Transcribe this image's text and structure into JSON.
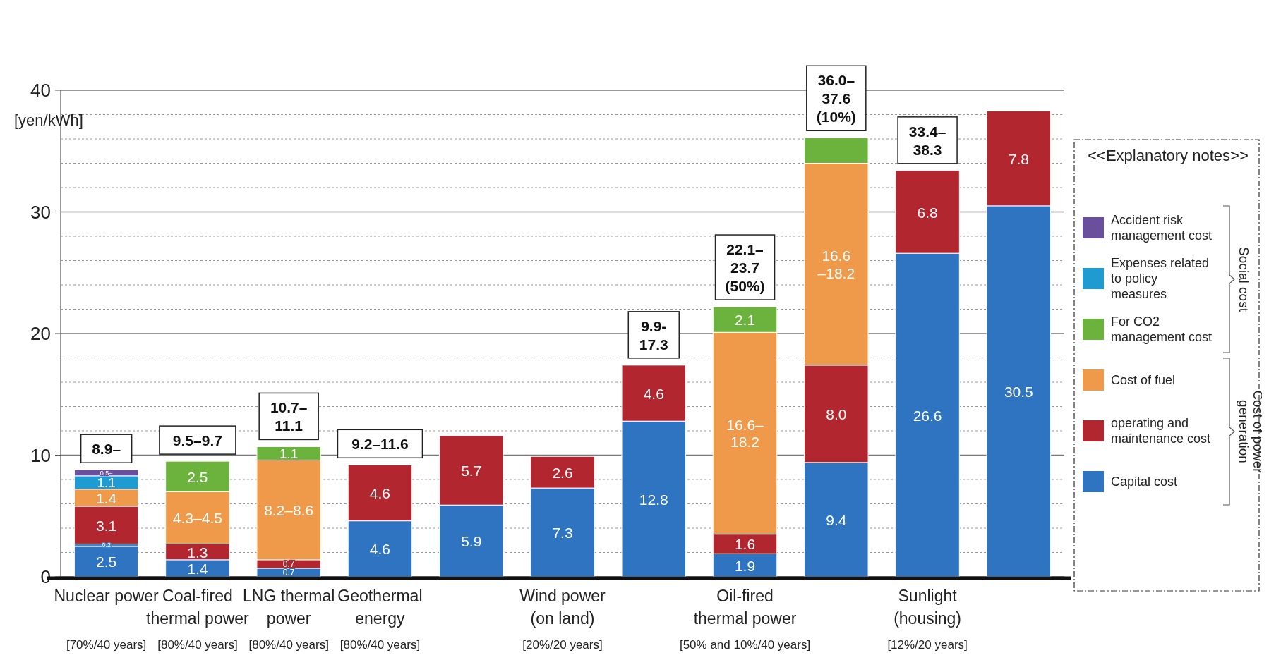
{
  "chart_data": {
    "type": "bar",
    "stacked": true,
    "categories": [
      "Nuclear power\n[70%/40 years]",
      "Coal-fired\nthermal power\n[80%/40 years]",
      "LNG thermal\npower\n[80%/40 years]",
      "Geothermal\nenergy\n[80%/40 years]",
      null,
      "Wind power\n(on land)\n[20%/20 years]",
      null,
      "Oil-fired\nthermal power\n[50% and 10%/40 years]",
      null,
      "Sunlight\n(housing)\n[12%/20 years]",
      null
    ],
    "series": [
      {
        "name": "Capital cost",
        "color": "#2e74c0",
        "values": [
          2.5,
          1.4,
          0.7,
          4.6,
          5.9,
          7.3,
          12.8,
          1.9,
          9.4,
          26.6,
          30.5
        ],
        "value_labels": [
          "2.5",
          "1.4",
          "0.7",
          "4.6",
          "5.9",
          "7.3",
          "12.8",
          "1.9",
          "9.4",
          "26.6",
          "30.5"
        ]
      },
      {
        "color": "#3d84cc",
        "values": [
          0.2,
          null,
          null,
          null,
          null,
          null,
          null,
          null,
          null,
          null,
          null
        ],
        "value_labels": [
          "0.2",
          null,
          null,
          null,
          null,
          null,
          null,
          null,
          null,
          null,
          null
        ]
      },
      {
        "name": "operating and maintenance cost",
        "color": "#b2262f",
        "values": [
          3.1,
          1.3,
          0.7,
          4.6,
          5.7,
          2.6,
          4.6,
          1.6,
          8.0,
          6.8,
          7.8
        ],
        "value_labels": [
          "3.1",
          "1.3",
          "0.7",
          "4.6",
          "5.7",
          "2.6",
          "4.6",
          "1.6",
          "8.0",
          "6.8",
          "7.8"
        ]
      },
      {
        "name": "Cost of fuel",
        "color": "#ee9a4a",
        "values": [
          1.4,
          4.3,
          8.2,
          null,
          null,
          null,
          null,
          16.6,
          16.6,
          null,
          null
        ],
        "value_labels": [
          "1.4",
          "4.3–4.5",
          "8.2–8.6",
          null,
          null,
          null,
          null,
          "16.6–\n18.2",
          "16.6\n–18.2",
          null,
          null
        ]
      },
      {
        "name": "For CO2 management cost",
        "color": "#6cb33e",
        "values": [
          null,
          2.5,
          1.1,
          null,
          null,
          null,
          null,
          2.1,
          2.1,
          null,
          null
        ],
        "value_labels": [
          null,
          "2.5",
          "1.1",
          null,
          null,
          null,
          null,
          "2.1",
          null,
          null,
          null
        ]
      },
      {
        "name": "Expenses related to policy measures",
        "color": "#1f9bd1",
        "values": [
          1.1,
          null,
          null,
          null,
          null,
          null,
          null,
          null,
          null,
          null,
          null
        ],
        "value_labels": [
          "1.1",
          null,
          null,
          null,
          null,
          null,
          null,
          null,
          null,
          null,
          null
        ]
      },
      {
        "name": "Accident risk management cost",
        "color": "#6a4f9c",
        "values": [
          0.5,
          null,
          null,
          null,
          null,
          null,
          null,
          null,
          null,
          null,
          null
        ],
        "value_labels": [
          "0.5–",
          null,
          null,
          null,
          null,
          null,
          null,
          null,
          null,
          null,
          null
        ]
      }
    ],
    "ylabel": "[yen/kWh]",
    "ylim": [
      0,
      40
    ],
    "yticks": [
      0,
      {
        "value": 2,
        "label": null
      },
      {
        "value": 4,
        "label": null
      },
      {
        "value": 6,
        "label": null
      },
      {
        "value": 8,
        "label": null
      },
      10,
      {
        "value": 12,
        "label": null
      },
      {
        "value": 14,
        "label": null
      },
      {
        "value": 16,
        "label": null
      },
      {
        "value": 18,
        "label": null
      },
      20,
      {
        "value": 22,
        "label": null
      },
      {
        "value": 24,
        "label": null
      },
      {
        "value": 26,
        "label": null
      },
      {
        "value": 28,
        "label": null
      },
      30,
      {
        "value": 32,
        "label": null
      },
      {
        "value": 34,
        "label": null
      },
      {
        "value": 36,
        "label": null
      },
      {
        "value": 38,
        "label": null
      },
      40
    ],
    "grid": "y",
    "legend": "right",
    "legend_title": "<<Explanatory notes>>",
    "totals": [
      "8.9–",
      "9.5–9.7",
      "10.7–\n11.1",
      "9.2–11.6",
      null,
      null,
      "9.9-\n17.3",
      "22.1–\n23.7\n(50%)",
      "36.0–\n37.6\n(10%)",
      "33.4–\n38.3",
      null
    ],
    "annotations": [
      "Social cost",
      "Cost of power generation"
    ]
  }
}
